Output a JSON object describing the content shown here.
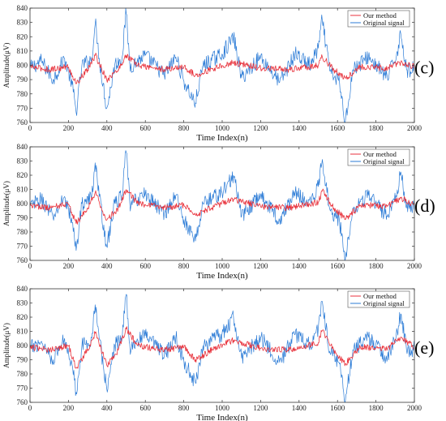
{
  "chart_data": [
    {
      "type": "line",
      "panel_label": "(c)",
      "xlabel": "Time Index(n)",
      "ylabel": "Amplitude(μV)",
      "xlim": [
        0,
        2000
      ],
      "ylim": [
        760,
        840
      ],
      "xticks": [
        0,
        200,
        400,
        600,
        800,
        1000,
        1200,
        1400,
        1600,
        1800,
        2000
      ],
      "yticks": [
        760,
        770,
        780,
        790,
        800,
        810,
        820,
        830,
        840
      ],
      "legend_position": "top-right",
      "series": [
        {
          "name": "Original signal",
          "color": "#2b7bd6",
          "values": [
            {
              "x": 0,
              "y": 798
            },
            {
              "x": 60,
              "y": 803
            },
            {
              "x": 120,
              "y": 790
            },
            {
              "x": 180,
              "y": 805
            },
            {
              "x": 220,
              "y": 786
            },
            {
              "x": 240,
              "y": 767
            },
            {
              "x": 270,
              "y": 800
            },
            {
              "x": 320,
              "y": 804
            },
            {
              "x": 340,
              "y": 830
            },
            {
              "x": 360,
              "y": 805
            },
            {
              "x": 400,
              "y": 769
            },
            {
              "x": 440,
              "y": 800
            },
            {
              "x": 480,
              "y": 806
            },
            {
              "x": 500,
              "y": 838
            },
            {
              "x": 520,
              "y": 799
            },
            {
              "x": 600,
              "y": 807
            },
            {
              "x": 700,
              "y": 793
            },
            {
              "x": 760,
              "y": 806
            },
            {
              "x": 800,
              "y": 789
            },
            {
              "x": 860,
              "y": 773
            },
            {
              "x": 900,
              "y": 800
            },
            {
              "x": 1000,
              "y": 808
            },
            {
              "x": 1060,
              "y": 820
            },
            {
              "x": 1100,
              "y": 791
            },
            {
              "x": 1200,
              "y": 806
            },
            {
              "x": 1300,
              "y": 788
            },
            {
              "x": 1380,
              "y": 808
            },
            {
              "x": 1460,
              "y": 800
            },
            {
              "x": 1500,
              "y": 812
            },
            {
              "x": 1520,
              "y": 832
            },
            {
              "x": 1560,
              "y": 796
            },
            {
              "x": 1610,
              "y": 788
            },
            {
              "x": 1640,
              "y": 760
            },
            {
              "x": 1680,
              "y": 797
            },
            {
              "x": 1760,
              "y": 806
            },
            {
              "x": 1860,
              "y": 791
            },
            {
              "x": 1910,
              "y": 809
            },
            {
              "x": 1930,
              "y": 823
            },
            {
              "x": 1960,
              "y": 796
            },
            {
              "x": 2000,
              "y": 798
            }
          ]
        },
        {
          "name": "Our method",
          "color": "#e8323c",
          "values": [
            {
              "x": 0,
              "y": 799
            },
            {
              "x": 100,
              "y": 797
            },
            {
              "x": 200,
              "y": 799
            },
            {
              "x": 240,
              "y": 787
            },
            {
              "x": 300,
              "y": 797
            },
            {
              "x": 340,
              "y": 807
            },
            {
              "x": 400,
              "y": 790
            },
            {
              "x": 460,
              "y": 797
            },
            {
              "x": 500,
              "y": 807
            },
            {
              "x": 560,
              "y": 800
            },
            {
              "x": 700,
              "y": 797
            },
            {
              "x": 800,
              "y": 799
            },
            {
              "x": 860,
              "y": 793
            },
            {
              "x": 960,
              "y": 798
            },
            {
              "x": 1060,
              "y": 802
            },
            {
              "x": 1200,
              "y": 798
            },
            {
              "x": 1350,
              "y": 797
            },
            {
              "x": 1500,
              "y": 800
            },
            {
              "x": 1520,
              "y": 806
            },
            {
              "x": 1580,
              "y": 797
            },
            {
              "x": 1640,
              "y": 791
            },
            {
              "x": 1720,
              "y": 799
            },
            {
              "x": 1860,
              "y": 798
            },
            {
              "x": 1930,
              "y": 802
            },
            {
              "x": 2000,
              "y": 799
            }
          ]
        }
      ]
    },
    {
      "type": "line",
      "panel_label": "(d)",
      "xlabel": "Time Index(n)",
      "ylabel": "Amplitude(μV)",
      "xlim": [
        0,
        2000
      ],
      "ylim": [
        760,
        840
      ],
      "xticks": [
        0,
        200,
        400,
        600,
        800,
        1000,
        1200,
        1400,
        1600,
        1800,
        2000
      ],
      "yticks": [
        760,
        770,
        780,
        790,
        800,
        810,
        820,
        830,
        840
      ],
      "legend_position": "top-right",
      "series": [
        {
          "name": "Original signal",
          "color": "#2b7bd6",
          "values": [
            {
              "x": 0,
              "y": 798
            },
            {
              "x": 60,
              "y": 803
            },
            {
              "x": 120,
              "y": 790
            },
            {
              "x": 180,
              "y": 805
            },
            {
              "x": 220,
              "y": 786
            },
            {
              "x": 240,
              "y": 767
            },
            {
              "x": 270,
              "y": 800
            },
            {
              "x": 320,
              "y": 804
            },
            {
              "x": 340,
              "y": 830
            },
            {
              "x": 360,
              "y": 805
            },
            {
              "x": 400,
              "y": 769
            },
            {
              "x": 440,
              "y": 800
            },
            {
              "x": 480,
              "y": 806
            },
            {
              "x": 500,
              "y": 838
            },
            {
              "x": 520,
              "y": 799
            },
            {
              "x": 600,
              "y": 807
            },
            {
              "x": 700,
              "y": 793
            },
            {
              "x": 760,
              "y": 806
            },
            {
              "x": 800,
              "y": 789
            },
            {
              "x": 860,
              "y": 773
            },
            {
              "x": 900,
              "y": 800
            },
            {
              "x": 1000,
              "y": 808
            },
            {
              "x": 1060,
              "y": 820
            },
            {
              "x": 1100,
              "y": 791
            },
            {
              "x": 1200,
              "y": 806
            },
            {
              "x": 1300,
              "y": 788
            },
            {
              "x": 1380,
              "y": 808
            },
            {
              "x": 1460,
              "y": 800
            },
            {
              "x": 1500,
              "y": 812
            },
            {
              "x": 1520,
              "y": 832
            },
            {
              "x": 1560,
              "y": 796
            },
            {
              "x": 1610,
              "y": 788
            },
            {
              "x": 1640,
              "y": 760
            },
            {
              "x": 1680,
              "y": 797
            },
            {
              "x": 1760,
              "y": 806
            },
            {
              "x": 1860,
              "y": 791
            },
            {
              "x": 1910,
              "y": 809
            },
            {
              "x": 1930,
              "y": 823
            },
            {
              "x": 1960,
              "y": 796
            },
            {
              "x": 2000,
              "y": 798
            }
          ]
        },
        {
          "name": "Our method",
          "color": "#e8323c",
          "values": [
            {
              "x": 0,
              "y": 799
            },
            {
              "x": 100,
              "y": 797
            },
            {
              "x": 200,
              "y": 800
            },
            {
              "x": 240,
              "y": 786
            },
            {
              "x": 300,
              "y": 797
            },
            {
              "x": 340,
              "y": 808
            },
            {
              "x": 400,
              "y": 788
            },
            {
              "x": 460,
              "y": 797
            },
            {
              "x": 500,
              "y": 810
            },
            {
              "x": 560,
              "y": 800
            },
            {
              "x": 700,
              "y": 797
            },
            {
              "x": 800,
              "y": 799
            },
            {
              "x": 860,
              "y": 792
            },
            {
              "x": 960,
              "y": 798
            },
            {
              "x": 1060,
              "y": 803
            },
            {
              "x": 1200,
              "y": 798
            },
            {
              "x": 1350,
              "y": 797
            },
            {
              "x": 1500,
              "y": 801
            },
            {
              "x": 1520,
              "y": 809
            },
            {
              "x": 1580,
              "y": 797
            },
            {
              "x": 1640,
              "y": 789
            },
            {
              "x": 1720,
              "y": 799
            },
            {
              "x": 1860,
              "y": 798
            },
            {
              "x": 1930,
              "y": 804
            },
            {
              "x": 2000,
              "y": 799
            }
          ]
        }
      ]
    },
    {
      "type": "line",
      "panel_label": "(e)",
      "xlabel": "Time Index(n)",
      "ylabel": "Amplitude(μV)",
      "xlim": [
        0,
        2000
      ],
      "ylim": [
        760,
        840
      ],
      "xticks": [
        0,
        200,
        400,
        600,
        800,
        1000,
        1200,
        1400,
        1600,
        1800,
        2000
      ],
      "yticks": [
        760,
        770,
        780,
        790,
        800,
        810,
        820,
        830,
        840
      ],
      "legend_position": "top-right",
      "series": [
        {
          "name": "Original signal",
          "color": "#2b7bd6",
          "values": [
            {
              "x": 0,
              "y": 798
            },
            {
              "x": 60,
              "y": 803
            },
            {
              "x": 120,
              "y": 790
            },
            {
              "x": 180,
              "y": 805
            },
            {
              "x": 220,
              "y": 786
            },
            {
              "x": 240,
              "y": 767
            },
            {
              "x": 270,
              "y": 800
            },
            {
              "x": 320,
              "y": 804
            },
            {
              "x": 340,
              "y": 830
            },
            {
              "x": 360,
              "y": 805
            },
            {
              "x": 400,
              "y": 769
            },
            {
              "x": 440,
              "y": 800
            },
            {
              "x": 480,
              "y": 806
            },
            {
              "x": 500,
              "y": 838
            },
            {
              "x": 520,
              "y": 799
            },
            {
              "x": 600,
              "y": 807
            },
            {
              "x": 700,
              "y": 793
            },
            {
              "x": 760,
              "y": 806
            },
            {
              "x": 800,
              "y": 789
            },
            {
              "x": 860,
              "y": 773
            },
            {
              "x": 900,
              "y": 800
            },
            {
              "x": 1000,
              "y": 808
            },
            {
              "x": 1060,
              "y": 820
            },
            {
              "x": 1100,
              "y": 791
            },
            {
              "x": 1200,
              "y": 806
            },
            {
              "x": 1300,
              "y": 788
            },
            {
              "x": 1380,
              "y": 808
            },
            {
              "x": 1460,
              "y": 800
            },
            {
              "x": 1500,
              "y": 812
            },
            {
              "x": 1520,
              "y": 832
            },
            {
              "x": 1560,
              "y": 796
            },
            {
              "x": 1610,
              "y": 788
            },
            {
              "x": 1640,
              "y": 760
            },
            {
              "x": 1680,
              "y": 797
            },
            {
              "x": 1760,
              "y": 806
            },
            {
              "x": 1860,
              "y": 791
            },
            {
              "x": 1910,
              "y": 809
            },
            {
              "x": 1930,
              "y": 823
            },
            {
              "x": 1960,
              "y": 796
            },
            {
              "x": 2000,
              "y": 798
            }
          ]
        },
        {
          "name": "Our method",
          "color": "#e8323c",
          "values": [
            {
              "x": 0,
              "y": 799
            },
            {
              "x": 100,
              "y": 797
            },
            {
              "x": 200,
              "y": 800
            },
            {
              "x": 240,
              "y": 784
            },
            {
              "x": 300,
              "y": 797
            },
            {
              "x": 340,
              "y": 809
            },
            {
              "x": 400,
              "y": 786
            },
            {
              "x": 460,
              "y": 797
            },
            {
              "x": 500,
              "y": 812
            },
            {
              "x": 560,
              "y": 800
            },
            {
              "x": 700,
              "y": 797
            },
            {
              "x": 800,
              "y": 799
            },
            {
              "x": 860,
              "y": 790
            },
            {
              "x": 960,
              "y": 798
            },
            {
              "x": 1060,
              "y": 804
            },
            {
              "x": 1200,
              "y": 798
            },
            {
              "x": 1350,
              "y": 797
            },
            {
              "x": 1500,
              "y": 802
            },
            {
              "x": 1520,
              "y": 811
            },
            {
              "x": 1580,
              "y": 797
            },
            {
              "x": 1640,
              "y": 787
            },
            {
              "x": 1720,
              "y": 799
            },
            {
              "x": 1860,
              "y": 798
            },
            {
              "x": 1930,
              "y": 806
            },
            {
              "x": 2000,
              "y": 799
            }
          ]
        }
      ]
    }
  ]
}
